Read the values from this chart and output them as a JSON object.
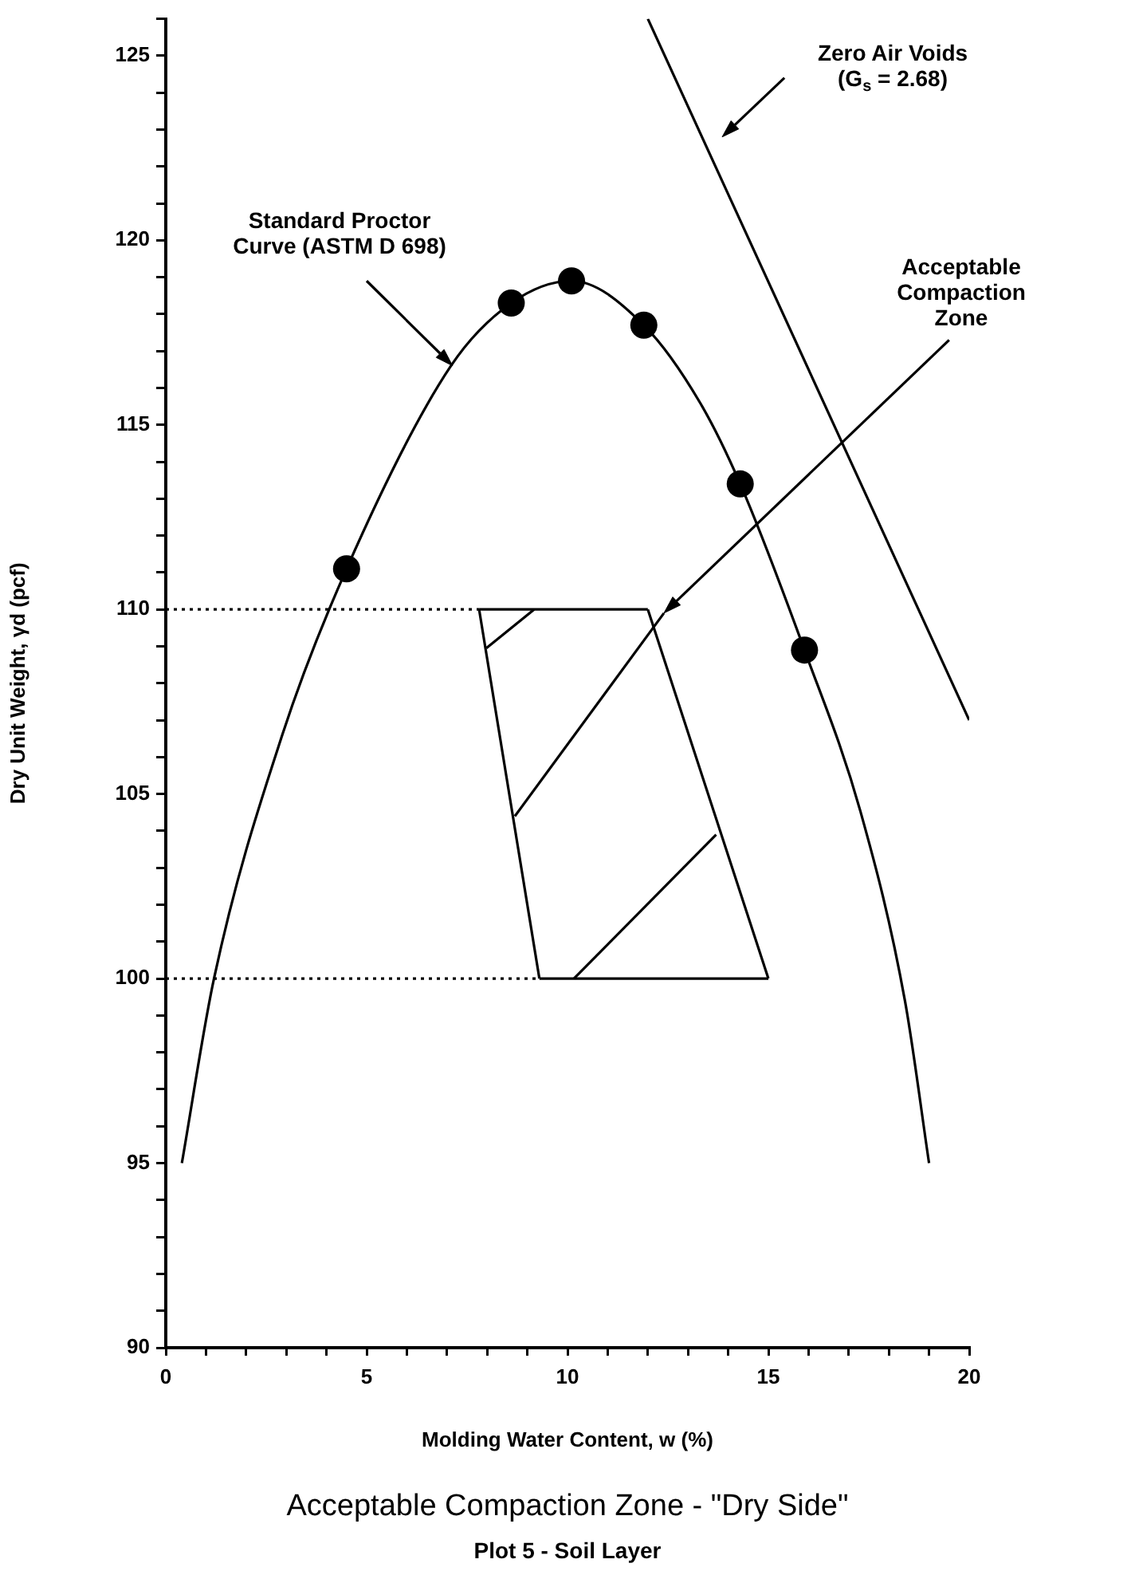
{
  "chart_data": {
    "type": "scatter",
    "title": "Acceptable Compaction Zone - \"Dry Side\"",
    "subtitle": "Plot 5 - Soil Layer",
    "xlabel": "Molding Water Content, w (%)",
    "ylabel": "Dry Unit Weight, γd (pcf)",
    "xlim": [
      0,
      20
    ],
    "ylim": [
      90,
      126
    ],
    "xticks": [
      0,
      {
        "value": 1,
        "label": null
      },
      {
        "value": 2,
        "label": null
      },
      {
        "value": 3,
        "label": null
      },
      {
        "value": 4,
        "label": null
      },
      5,
      {
        "value": 6,
        "label": null
      },
      {
        "value": 7,
        "label": null
      },
      {
        "value": 8,
        "label": null
      },
      {
        "value": 9,
        "label": null
      },
      10,
      {
        "value": 11,
        "label": null
      },
      {
        "value": 12,
        "label": null
      },
      {
        "value": 13,
        "label": null
      },
      {
        "value": 14,
        "label": null
      },
      15,
      {
        "value": 16,
        "label": null
      },
      {
        "value": 17,
        "label": null
      },
      {
        "value": 18,
        "label": null
      },
      {
        "value": 19,
        "label": null
      },
      20
    ],
    "yticks": [
      90,
      {
        "value": 91,
        "label": null
      },
      {
        "value": 92,
        "label": null
      },
      {
        "value": 93,
        "label": null
      },
      {
        "value": 94,
        "label": null
      },
      95,
      {
        "value": 96,
        "label": null
      },
      {
        "value": 97,
        "label": null
      },
      {
        "value": 98,
        "label": null
      },
      {
        "value": 99,
        "label": null
      },
      100,
      {
        "value": 101,
        "label": null
      },
      {
        "value": 102,
        "label": null
      },
      {
        "value": 103,
        "label": null
      },
      {
        "value": 104,
        "label": null
      },
      105,
      {
        "value": 106,
        "label": null
      },
      {
        "value": 107,
        "label": null
      },
      {
        "value": 108,
        "label": null
      },
      {
        "value": 109,
        "label": null
      },
      110,
      {
        "value": 111,
        "label": null
      },
      {
        "value": 112,
        "label": null
      },
      {
        "value": 113,
        "label": null
      },
      {
        "value": 114,
        "label": null
      },
      115,
      {
        "value": 116,
        "label": null
      },
      {
        "value": 117,
        "label": null
      },
      {
        "value": 118,
        "label": null
      },
      {
        "value": 119,
        "label": null
      },
      120,
      {
        "value": 121,
        "label": null
      },
      {
        "value": 122,
        "label": null
      },
      {
        "value": 123,
        "label": null
      },
      {
        "value": 124,
        "label": null
      },
      125,
      {
        "value": 126,
        "label": null
      }
    ],
    "grid": false,
    "legend": false,
    "series": [
      {
        "type": "line",
        "color": "#000000",
        "marker": "none",
        "line_style": "solid",
        "x": [
          0.4,
          1.2,
          2.9,
          4.5,
          7.1,
          8.6,
          10.1,
          11.9,
          13.3,
          14.3,
          15.9,
          17.3,
          18.4,
          19.0
        ],
        "values": [
          95,
          100,
          106.6,
          111.1,
          116.6,
          118.3,
          118.9,
          117.7,
          115.6,
          113.4,
          108.9,
          104.5,
          99.4,
          95
        ]
      },
      {
        "color": "#000000",
        "marker": "circle",
        "x": [
          4.5,
          8.6,
          10.1,
          11.9,
          14.3,
          15.9
        ],
        "values": [
          111.1,
          118.3,
          118.9,
          117.7,
          113.4,
          108.9
        ]
      },
      {
        "type": "line",
        "color": "#000000",
        "marker": "none",
        "line_style": "solid",
        "x": [
          12.0,
          20
        ],
        "values": [
          126,
          107
        ]
      },
      {
        "type": "line",
        "color": "#000000",
        "marker": "none",
        "line_style": "solid",
        "x": [
          7.8,
          12.0
        ],
        "values": [
          110,
          110
        ]
      },
      {
        "type": "line",
        "color": "#000000",
        "marker": "none",
        "line_style": "solid",
        "x": [
          12.0,
          15.0
        ],
        "values": [
          110,
          100
        ]
      },
      {
        "type": "line",
        "color": "#000000",
        "marker": "none",
        "line_style": "solid",
        "x": [
          9.3,
          15.0
        ],
        "values": [
          100,
          100
        ]
      },
      {
        "type": "line",
        "color": "#000000",
        "marker": "none",
        "line_style": "solid",
        "x": [
          7.8,
          9.3
        ],
        "values": [
          110,
          100
        ]
      },
      {
        "type": "line",
        "color": "#000000",
        "marker": "none",
        "line_style": "dotted",
        "x": [
          0,
          7.8
        ],
        "values": [
          110,
          110
        ]
      },
      {
        "type": "line",
        "color": "#000000",
        "marker": "none",
        "line_style": "dotted",
        "x": [
          0,
          9.3
        ],
        "values": [
          100,
          100
        ]
      }
    ],
    "annotations": [
      "Standard Proctor\nCurve (ASTM D 698)",
      "Zero Air Voids\n(G$_{s}$ = 2.68)",
      "Acceptable\nCompaction\nZone"
    ]
  }
}
